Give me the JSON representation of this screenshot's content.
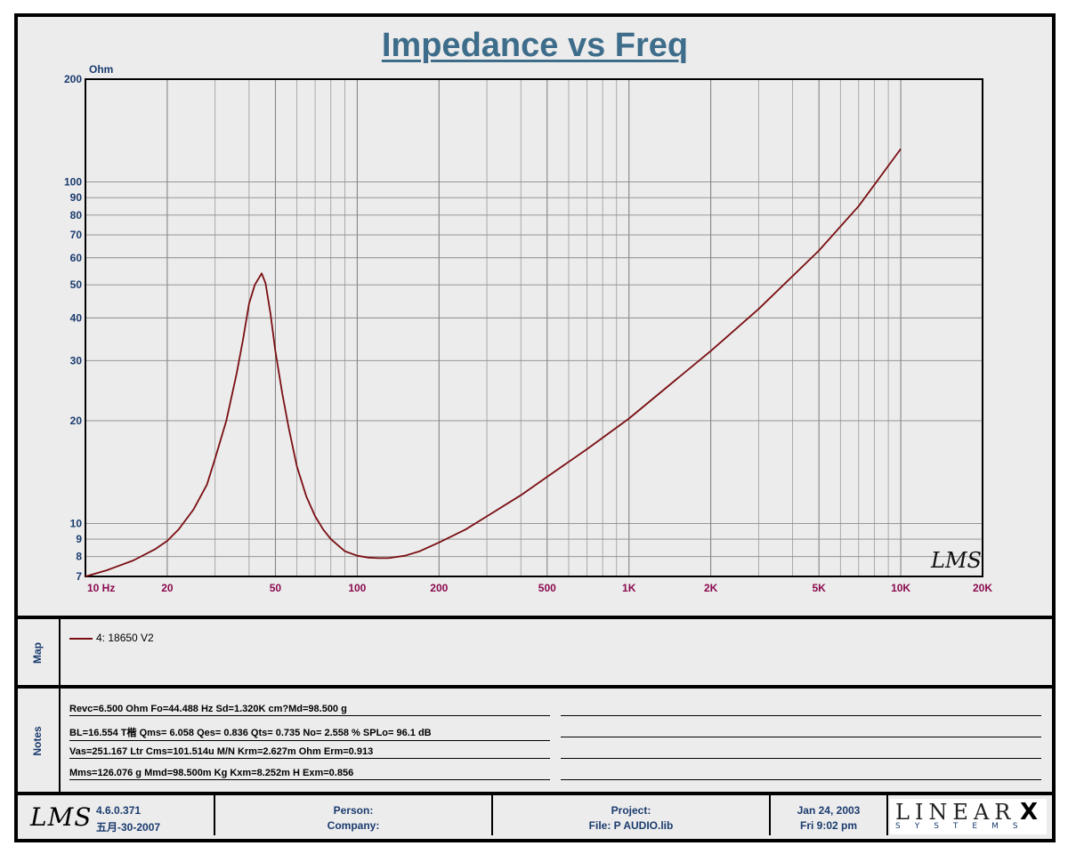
{
  "title": "Impedance vs Freq",
  "chart_data": {
    "type": "line",
    "title": "Impedance vs Freq",
    "ylabel": "Ohm",
    "xlabel": "",
    "x_scale": "log",
    "y_scale": "log",
    "xlim": [
      10,
      20000
    ],
    "ylim": [
      7,
      200
    ],
    "grid": true,
    "x_ticks": [
      {
        "v": 10,
        "label": "10  Hz"
      },
      {
        "v": 20,
        "label": "20"
      },
      {
        "v": 50,
        "label": "50"
      },
      {
        "v": 100,
        "label": "100"
      },
      {
        "v": 200,
        "label": "200"
      },
      {
        "v": 500,
        "label": "500"
      },
      {
        "v": 1000,
        "label": "1K"
      },
      {
        "v": 2000,
        "label": "2K"
      },
      {
        "v": 5000,
        "label": "5K"
      },
      {
        "v": 10000,
        "label": "10K"
      },
      {
        "v": 20000,
        "label": "20K"
      }
    ],
    "y_ticks": [
      {
        "v": 7,
        "label": "7"
      },
      {
        "v": 8,
        "label": "8"
      },
      {
        "v": 9,
        "label": "9"
      },
      {
        "v": 10,
        "label": "10"
      },
      {
        "v": 20,
        "label": "20"
      },
      {
        "v": 30,
        "label": "30"
      },
      {
        "v": 40,
        "label": "40"
      },
      {
        "v": 50,
        "label": "50"
      },
      {
        "v": 60,
        "label": "60"
      },
      {
        "v": 70,
        "label": "70"
      },
      {
        "v": 80,
        "label": "80"
      },
      {
        "v": 90,
        "label": "90"
      },
      {
        "v": 100,
        "label": "100"
      },
      {
        "v": 200,
        "label": "200"
      }
    ],
    "series": [
      {
        "name": "4: 18650 V2",
        "color": "#7a0e12",
        "x": [
          10,
          12,
          15,
          18,
          20,
          22,
          25,
          28,
          30,
          33,
          36,
          38,
          40,
          42,
          44.5,
          46,
          48,
          50,
          53,
          56,
          60,
          65,
          70,
          75,
          80,
          90,
          100,
          110,
          120,
          130,
          150,
          170,
          200,
          250,
          300,
          400,
          500,
          700,
          1000,
          1500,
          2000,
          3000,
          5000,
          7000,
          10000
        ],
        "y": [
          7.0,
          7.3,
          7.8,
          8.4,
          8.9,
          9.6,
          11.0,
          13.0,
          15.5,
          20.0,
          27.5,
          34.5,
          44.0,
          50.0,
          54.0,
          50.5,
          41.0,
          32.0,
          24.0,
          19.0,
          14.7,
          12.0,
          10.5,
          9.6,
          9.0,
          8.3,
          8.05,
          7.95,
          7.92,
          7.92,
          8.05,
          8.3,
          8.8,
          9.6,
          10.5,
          12.1,
          13.7,
          16.5,
          20.3,
          26.5,
          32.0,
          42.5,
          63.0,
          85.0,
          125.0
        ]
      }
    ]
  },
  "map": {
    "label": "Map",
    "entry": "4: 18650 V2"
  },
  "notes": {
    "label": "Notes",
    "lines": [
      "Revc=6.500 Ohm  Fo=44.488 Hz  Sd=1.320K cm?Md=98.500 g",
      "BL=16.554 T楷  Qms= 6.058  Qes= 0.836  Qts= 0.735  No= 2.558 %  SPLo= 96.1 dB",
      "Vas=251.167 Ltr  Cms=101.514u M/N  Krm=2.627m Ohm  Erm=0.913",
      "Mms=126.076 g  Mmd=98.500m Kg  Kxm=8.252m H  Exm=0.856"
    ]
  },
  "footer": {
    "logo": "LMS",
    "version": "4.6.0.371",
    "version_date": "五月-30-2007",
    "person_label": "Person:",
    "company_label": "Company:",
    "project_label": "Project:",
    "file_label": "File: P AUDIO.lib",
    "date": "Jan 24, 2003",
    "time": "Fri  9:02 pm",
    "brand": "LINEAR",
    "brand_x": "X",
    "brand_sub": "SYSTEMS"
  },
  "watermark": "LMS",
  "colors": {
    "title": "#3d6d8a",
    "axis_label": "#1a3b6e",
    "tick_label_x": "#8b0a4f",
    "curve": "#7a0e12",
    "panel": "#ececec"
  }
}
